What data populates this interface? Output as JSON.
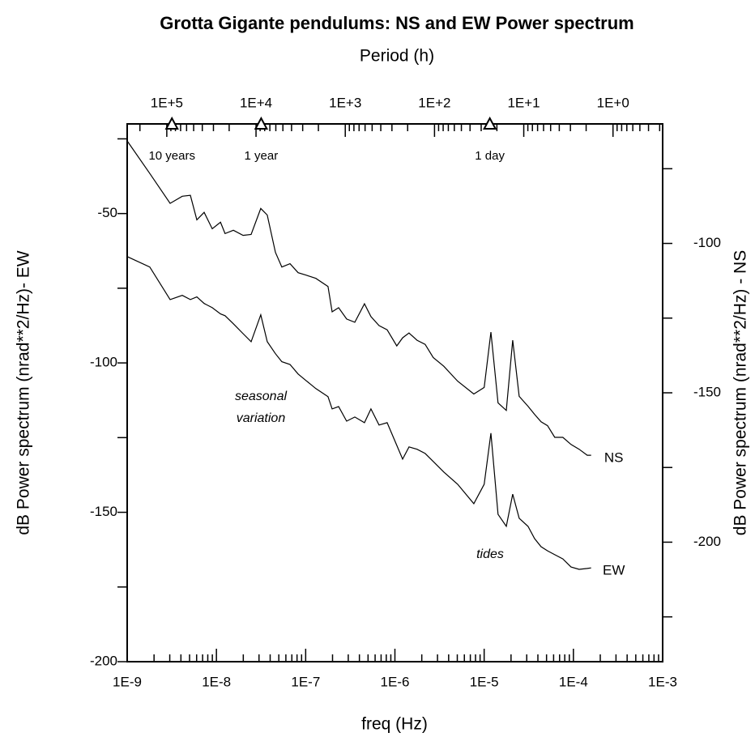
{
  "chart_data": {
    "type": "line",
    "title": "Grotta Gigante pendulums: NS and EW Power spectrum",
    "x_label": "freq (Hz)",
    "x2_label": "Period (h)",
    "y_label": "dB Power spectrum (nrad**2/Hz)- EW",
    "y2_label": "dB Power spectrum (nrad**2/Hz) - NS",
    "xlog": true,
    "xlim": [
      1e-09,
      0.001
    ],
    "xticks": [
      {
        "value": 1e-09,
        "label": "1E-9"
      },
      {
        "value": 1e-08,
        "label": "1E-8"
      },
      {
        "value": 1e-07,
        "label": "1E-7"
      },
      {
        "value": 1e-06,
        "label": "1E-6"
      },
      {
        "value": 1e-05,
        "label": "1E-5"
      },
      {
        "value": 0.0001,
        "label": "1E-4"
      },
      {
        "value": 0.001,
        "label": "1E-3"
      }
    ],
    "x2lim": [
      277778,
      0.2778
    ],
    "x2ticks": [
      {
        "value": 100000,
        "label": "1E+5"
      },
      {
        "value": 10000,
        "label": "1E+4"
      },
      {
        "value": 1000,
        "label": "1E+3"
      },
      {
        "value": 100,
        "label": "1E+2"
      },
      {
        "value": 10,
        "label": "1E+1"
      },
      {
        "value": 1,
        "label": "1E+0"
      }
    ],
    "ylim": [
      -200,
      -20
    ],
    "yticks": [
      -200,
      -150,
      -100,
      -50
    ],
    "y2lim": [
      -240,
      -60
    ],
    "y2ticks": [
      -200,
      -150,
      -100
    ],
    "markers": [
      {
        "period": 87600,
        "label": "10 years"
      },
      {
        "period": 8760,
        "label": "1 year"
      },
      {
        "period": 24,
        "label": "1 day"
      }
    ],
    "annotations": [
      {
        "lines": [
          "seasonal",
          "variation"
        ]
      },
      {
        "lines": [
          "tides"
        ]
      }
    ],
    "x": [
      1e-09,
      1.79e-09,
      3.03e-09,
      4.14e-09,
      5.1e-09,
      6.03e-09,
      7.28e-09,
      8.97e-09,
      1.11e-08,
      1.25e-08,
      1.55e-08,
      1.99e-08,
      2.45e-08,
      3.14e-08,
      3.71e-08,
      4.58e-08,
      5.41e-08,
      6.67e-08,
      8.22e-08,
      1.01e-07,
      1.3e-07,
      1.78e-07,
      1.98e-07,
      2.34e-07,
      2.88e-07,
      3.55e-07,
      4.56e-07,
      5.39e-07,
      6.64e-07,
      8.18e-07,
      1.05e-06,
      1.22e-06,
      1.44e-06,
      1.77e-06,
      2.18e-06,
      2.69e-06,
      3.53e-06,
      5.04e-06,
      7.65e-06,
      1e-05,
      1.19e-05,
      1.43e-05,
      1.77e-05,
      2.09e-05,
      2.47e-05,
      3.1e-05,
      3.67e-05,
      4.34e-05,
      5.13e-05,
      6.18e-05,
      7.62e-05,
      9.4e-05,
      0.000116,
      0.000143,
      0.000158
    ],
    "series": [
      {
        "name": "NS",
        "color": "#000000",
        "axis": "y2",
        "values": [
          -65.7,
          -76.6,
          -86.6,
          -84.2,
          -83.9,
          -92.1,
          -89.6,
          -95.1,
          -92.9,
          -96.7,
          -95.6,
          -97.3,
          -97.0,
          -88.3,
          -90.5,
          -103.0,
          -107.9,
          -106.8,
          -109.8,
          -110.6,
          -111.7,
          -114.4,
          -122.9,
          -121.5,
          -125.3,
          -126.4,
          -120.2,
          -124.5,
          -127.5,
          -128.9,
          -134.3,
          -131.6,
          -130.0,
          -132.4,
          -133.8,
          -138.2,
          -141.1,
          -146.1,
          -150.4,
          -148.2,
          -129.7,
          -153.4,
          -155.9,
          -132.4,
          -151.2,
          -154.5,
          -157.2,
          -159.7,
          -161.0,
          -164.9,
          -164.9,
          -167.3,
          -168.9,
          -170.9,
          -170.9
        ]
      },
      {
        "name": "EW",
        "color": "#000000",
        "values": [
          -64.4,
          -67.9,
          -78.8,
          -77.4,
          -78.8,
          -77.9,
          -80.1,
          -81.5,
          -83.6,
          -84.2,
          -86.9,
          -90.2,
          -92.9,
          -83.9,
          -92.9,
          -96.9,
          -99.6,
          -100.5,
          -103.7,
          -105.9,
          -108.6,
          -111.3,
          -115.4,
          -114.6,
          -119.5,
          -118.1,
          -120.0,
          -115.4,
          -120.8,
          -120.0,
          -127.6,
          -132.2,
          -128.1,
          -128.9,
          -130.3,
          -133.0,
          -136.5,
          -140.6,
          -147.1,
          -140.6,
          -123.5,
          -150.7,
          -154.7,
          -143.9,
          -152.0,
          -154.7,
          -158.8,
          -161.5,
          -162.9,
          -164.2,
          -165.6,
          -168.3,
          -169.1,
          -168.8,
          -168.6
        ]
      }
    ]
  }
}
